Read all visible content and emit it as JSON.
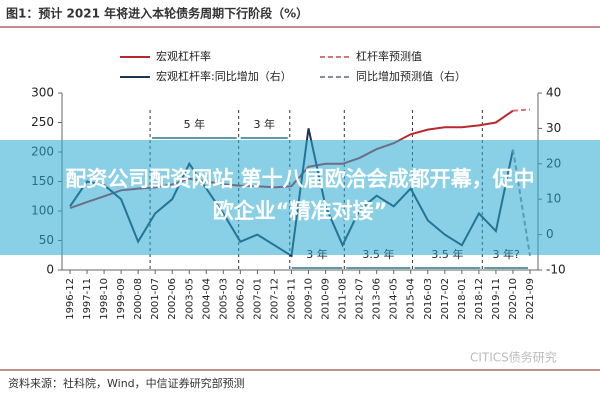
{
  "chart_data": {
    "type": "line",
    "title": "图1：预计 2021 年将进入本轮债务周期下行阶段（%）",
    "categories": [
      "1996-12",
      "1997-11",
      "1998-10",
      "1999-09",
      "2000-08",
      "2001-07",
      "2002-06",
      "2003-05",
      "2004-04",
      "2005-03",
      "2006-02",
      "2007-01",
      "2007-12",
      "2008-11",
      "2009-10",
      "2010-09",
      "2011-08",
      "2012-07",
      "2013-06",
      "2014-05",
      "2015-04",
      "2016-03",
      "2017-02",
      "2018-01",
      "2018-12",
      "2019-11",
      "2020-10",
      "2021-09"
    ],
    "series": [
      {
        "name": "宏观杠杆率",
        "color": "#b8292f",
        "dash": false,
        "values": [
          105,
          115,
          125,
          135,
          138,
          140,
          145,
          155,
          150,
          145,
          143,
          142,
          140,
          142,
          175,
          180,
          180,
          190,
          205,
          215,
          230,
          238,
          242,
          242,
          245,
          250,
          270,
          null
        ]
      },
      {
        "name": "杠杆率预测值",
        "color": "#d9737a",
        "dash": true,
        "values": [
          null,
          null,
          null,
          null,
          null,
          null,
          null,
          null,
          null,
          null,
          null,
          null,
          null,
          null,
          null,
          null,
          null,
          null,
          null,
          null,
          null,
          null,
          null,
          null,
          null,
          null,
          270,
          272
        ]
      },
      {
        "name": "宏观杠杆率:同比增加（右）",
        "color": "#1c3550",
        "dash": false,
        "axis": "y2",
        "values": [
          8,
          15,
          14,
          10,
          -2,
          6,
          10,
          20,
          13,
          6,
          -2,
          0,
          -3,
          -6,
          30,
          8,
          -3,
          7,
          11,
          8,
          13,
          4,
          0,
          -3,
          6,
          1,
          24,
          null
        ]
      },
      {
        "name": "同比增加预测值（右）",
        "color": "#8a8f96",
        "dash": true,
        "axis": "y2",
        "values": [
          null,
          null,
          null,
          null,
          null,
          null,
          null,
          null,
          null,
          null,
          null,
          null,
          null,
          null,
          null,
          null,
          null,
          null,
          null,
          null,
          null,
          null,
          null,
          null,
          null,
          null,
          24,
          -6
        ]
      }
    ],
    "ylim": [
      0,
      300
    ],
    "yticks": [
      0,
      50,
      100,
      150,
      200,
      250,
      300
    ],
    "y2lim": [
      -10,
      40
    ],
    "y2ticks": [
      -10,
      0,
      10,
      20,
      30,
      40
    ],
    "annotations": [
      "5 年",
      "3 年",
      "3 年",
      "3.5 年",
      "3.5 年",
      "3 年?"
    ],
    "source": "资料来源：社科院，Wind，中信证券研究部预测",
    "watermark": "CITICS债务研究",
    "overlay_text": [
      "配资公司配资网站 第十八届欧洽会成都开幕，促中",
      "欧企业“精准对接”"
    ]
  }
}
